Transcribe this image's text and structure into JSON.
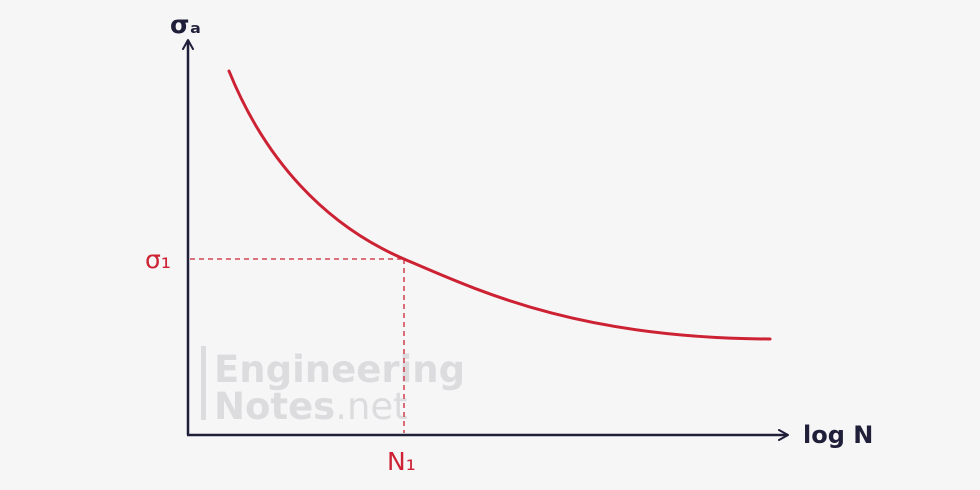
{
  "diagram": {
    "y_axis_label": "σₐ",
    "x_axis_label": "log N",
    "stress_marker_label": "σ₁",
    "cycles_marker_label": "N₁",
    "curve_color": "#cc2233",
    "axis_color": "#1f1f3a"
  },
  "watermark": {
    "line1": "Engineering",
    "line2_main": "Notes",
    "line2_suffix": ".net"
  }
}
